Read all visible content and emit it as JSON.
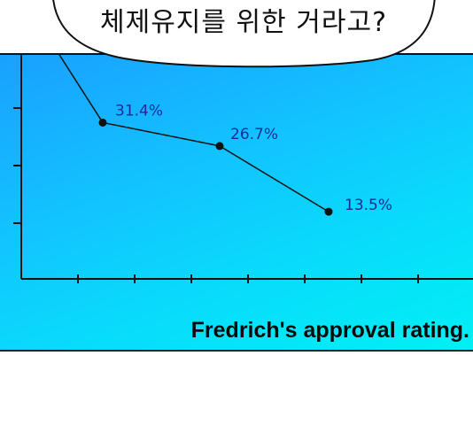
{
  "speech_bubble": {
    "text": "체제유지를 위한 거라고?"
  },
  "caption": {
    "text": "Fredrich's approval rating."
  },
  "chart_data": {
    "type": "line",
    "title": "Fredrich's approval rating.",
    "xlabel": "",
    "ylabel": "",
    "series": [
      {
        "values": [
          31.4,
          26.7,
          13.5
        ],
        "labels": [
          "31.4%",
          "26.7%",
          "13.5%"
        ]
      }
    ],
    "ylim": [
      0,
      45
    ],
    "grid": false,
    "line_color": "#111111",
    "background_colors": [
      "#1aa0ff",
      "#00f0f4"
    ]
  }
}
